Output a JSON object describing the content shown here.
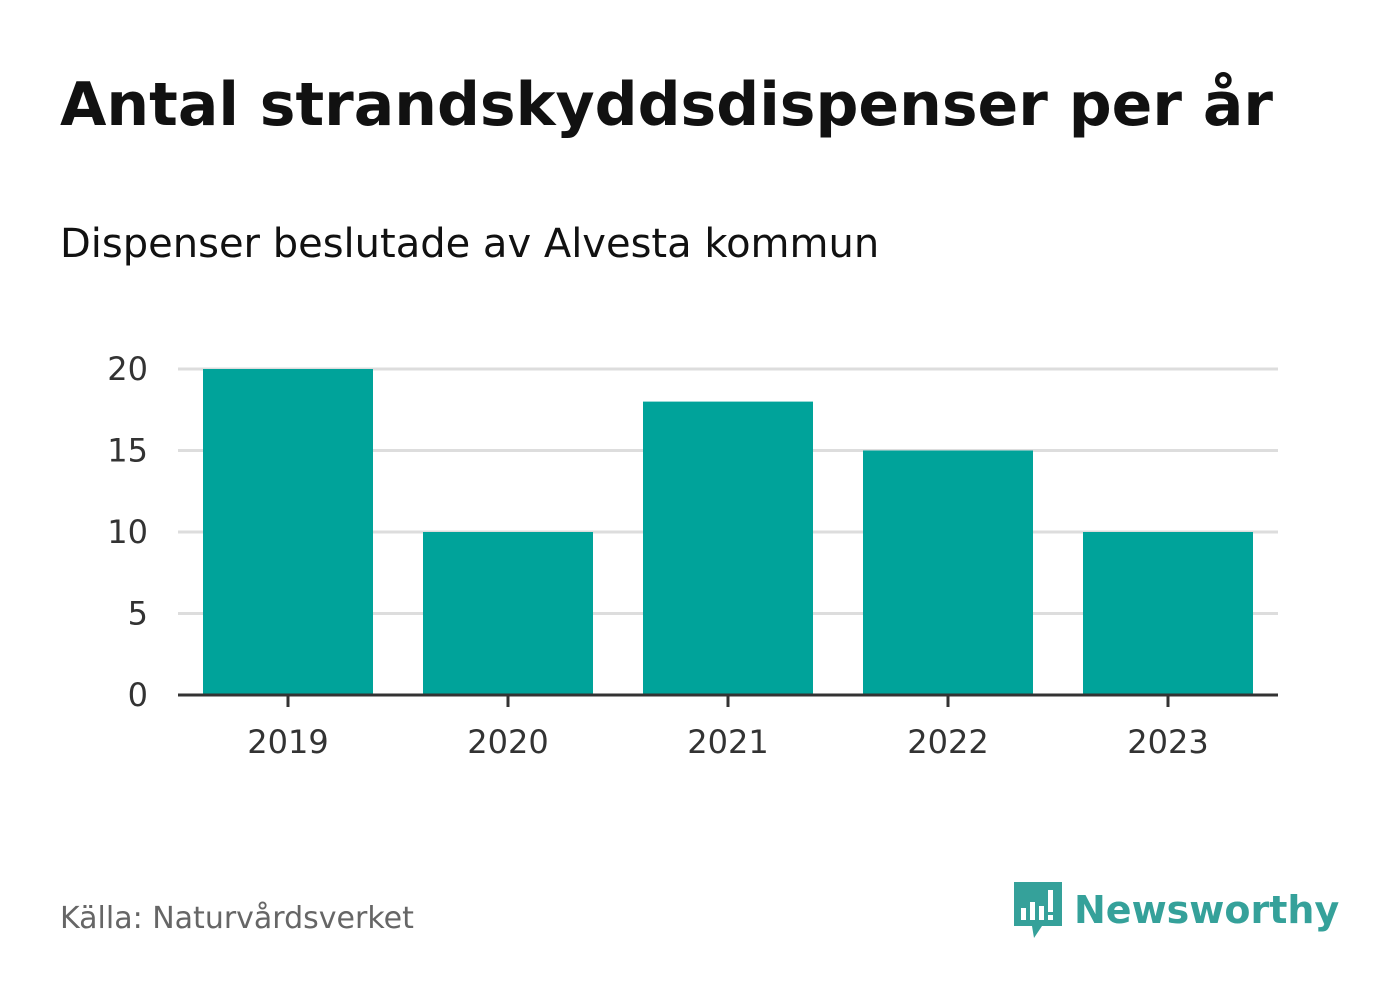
{
  "header": {
    "title": "Antal strandskyddsdispenser per år",
    "subtitle": "Dispenser beslutade av Alvesta kommun"
  },
  "footer": {
    "source": "Källa: Naturvårdsverket",
    "brand": "Newsworthy"
  },
  "colors": {
    "bar": "#00A39A",
    "grid": "#DDDDDD",
    "axis": "#333333",
    "brand": "#35A19A"
  },
  "chart_data": {
    "type": "bar",
    "title": "Antal strandskyddsdispenser per år",
    "subtitle": "Dispenser beslutade av Alvesta kommun",
    "categories": [
      "2019",
      "2020",
      "2021",
      "2022",
      "2023"
    ],
    "values": [
      20,
      10,
      18,
      15,
      10
    ],
    "yticks": [
      0,
      5,
      10,
      15,
      20
    ],
    "ylim": [
      0,
      20
    ],
    "xlabel": "",
    "ylabel": "",
    "grid": true,
    "legend": "none"
  }
}
